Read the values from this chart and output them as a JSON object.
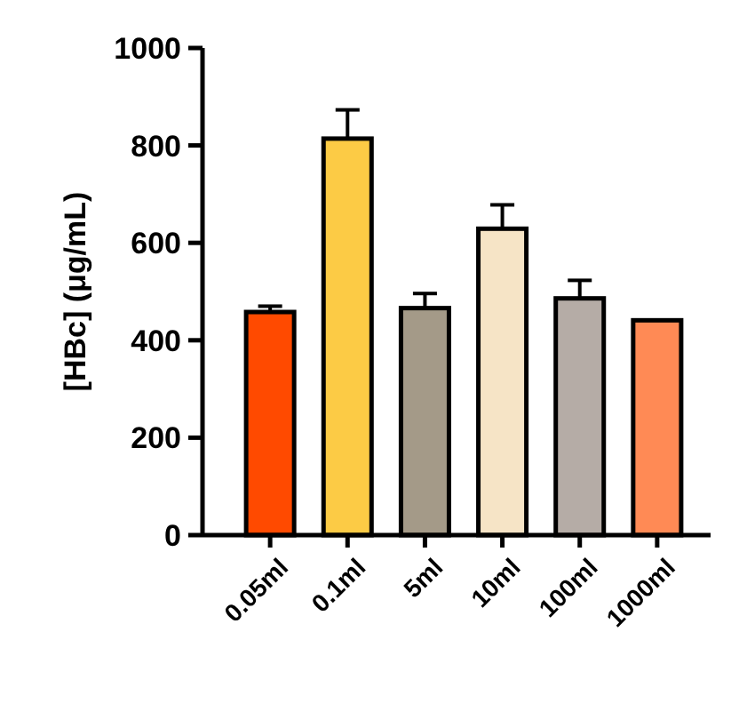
{
  "chart_data": {
    "type": "bar",
    "ylabel": "[HBc] (μg/mL)",
    "categories": [
      "0.05ml",
      "0.1ml",
      "5ml",
      "10ml",
      "100ml",
      "1000ml"
    ],
    "values": [
      458,
      814,
      466,
      629,
      486,
      441
    ],
    "colors": [
      "#ff4a00",
      "#fccb45",
      "#a49a88",
      "#f6e4c6",
      "#b5aca6",
      "#ff8a55"
    ],
    "errors": [
      [
        458,
        470
      ],
      [
        814,
        873
      ],
      [
        466,
        496
      ],
      [
        629,
        678
      ],
      [
        486,
        523
      ],
      null
    ],
    "ylim": [
      0,
      1000
    ],
    "yticks": [
      0,
      200,
      400,
      600,
      800,
      1000
    ]
  }
}
